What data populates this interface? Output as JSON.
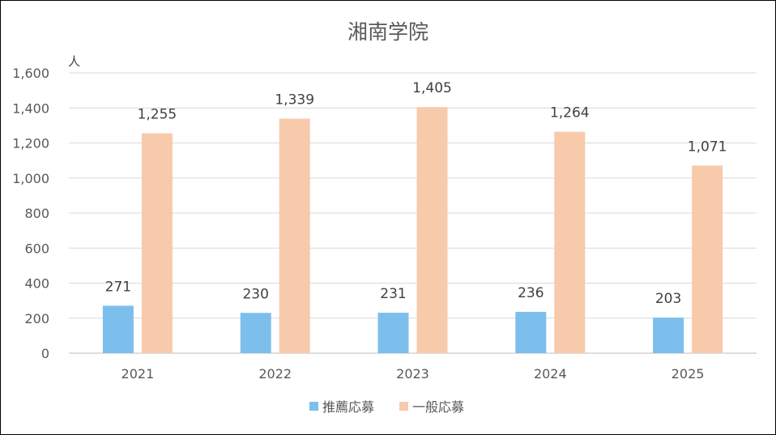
{
  "chart_data": {
    "type": "bar",
    "title": "湘南学院",
    "unit_label": "人",
    "categories": [
      "2021",
      "2022",
      "2023",
      "2024",
      "2025"
    ],
    "series": [
      {
        "name": "推薦応募",
        "color": "#7dbfec",
        "values": [
          271,
          230,
          231,
          236,
          203
        ]
      },
      {
        "name": "一般応募",
        "color": "#f7caac",
        "values": [
          1255,
          1339,
          1405,
          1264,
          1071
        ]
      }
    ],
    "ylim": [
      0,
      1600
    ],
    "yticks": [
      0,
      200,
      400,
      600,
      800,
      1000,
      1200,
      1400,
      1600
    ],
    "ytick_labels": [
      "0",
      "200",
      "400",
      "600",
      "800",
      "1,000",
      "1,200",
      "1,400",
      "1,600"
    ],
    "data_labels": [
      [
        "271",
        "230",
        "231",
        "236",
        "203"
      ],
      [
        "1,255",
        "1,339",
        "1,405",
        "1,264",
        "1,071"
      ]
    ],
    "grid": true,
    "legend_position": "bottom"
  }
}
